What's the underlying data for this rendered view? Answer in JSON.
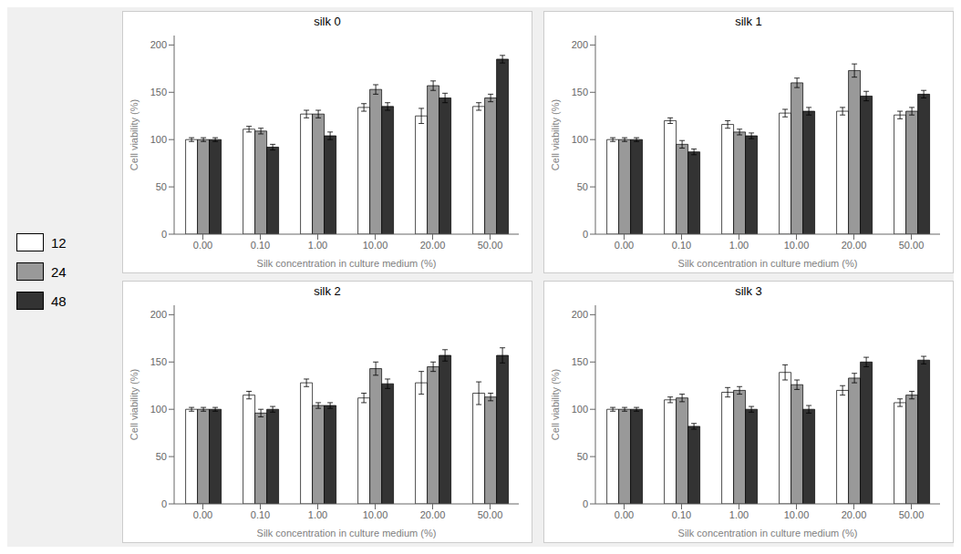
{
  "chart_data": [
    {
      "type": "bar",
      "title": "silk 0",
      "categories": [
        "0.00",
        "0.10",
        "1.00",
        "10.00",
        "20.00",
        "50.00"
      ],
      "xlabel": "Silk concentration in culture medium (%)",
      "ylabel": "Cell viability (%)",
      "ylim": [
        0,
        210
      ],
      "yticks": [
        0,
        50,
        100,
        150,
        200
      ],
      "legend": "left",
      "series": [
        {
          "name": "12",
          "color": "white",
          "values": [
            100,
            111,
            127,
            134,
            125,
            135
          ],
          "errors": [
            2,
            3,
            4,
            4,
            8,
            4
          ]
        },
        {
          "name": "24",
          "color": "#999999",
          "values": [
            100,
            109,
            127,
            153,
            157,
            144
          ],
          "errors": [
            2,
            3,
            4,
            5,
            5,
            4
          ]
        },
        {
          "name": "48",
          "color": "#333333",
          "values": [
            100,
            92,
            104,
            135,
            144,
            185
          ],
          "errors": [
            2,
            3,
            4,
            4,
            5,
            4
          ]
        }
      ]
    },
    {
      "type": "bar",
      "title": "silk 1",
      "categories": [
        "0.00",
        "0.10",
        "1.00",
        "10.00",
        "20.00",
        "50.00"
      ],
      "xlabel": "Silk concentration in culture medium (%)",
      "ylabel": "Cell viability (%)",
      "ylim": [
        0,
        210
      ],
      "yticks": [
        0,
        50,
        100,
        150,
        200
      ],
      "series": [
        {
          "name": "12",
          "color": "white",
          "values": [
            100,
            120,
            116,
            128,
            130,
            126
          ],
          "errors": [
            2,
            3,
            4,
            4,
            4,
            4
          ]
        },
        {
          "name": "24",
          "color": "#999999",
          "values": [
            100,
            95,
            108,
            160,
            173,
            130
          ],
          "errors": [
            2,
            4,
            3,
            5,
            7,
            4
          ]
        },
        {
          "name": "48",
          "color": "#333333",
          "values": [
            100,
            87,
            104,
            130,
            146,
            148
          ],
          "errors": [
            2,
            3,
            3,
            4,
            5,
            4
          ]
        }
      ]
    },
    {
      "type": "bar",
      "title": "silk 2",
      "categories": [
        "0.00",
        "0.10",
        "1.00",
        "10.00",
        "20.00",
        "50.00"
      ],
      "xlabel": "Silk concentration in culture medium (%)",
      "ylabel": "Cell viability (%)",
      "ylim": [
        0,
        210
      ],
      "yticks": [
        0,
        50,
        100,
        150,
        200
      ],
      "series": [
        {
          "name": "12",
          "color": "white",
          "values": [
            100,
            115,
            128,
            112,
            128,
            117
          ],
          "errors": [
            2,
            4,
            4,
            5,
            12,
            12
          ]
        },
        {
          "name": "24",
          "color": "#999999",
          "values": [
            100,
            96,
            104,
            143,
            145,
            113
          ],
          "errors": [
            2,
            4,
            3,
            7,
            5,
            4
          ]
        },
        {
          "name": "48",
          "color": "#333333",
          "values": [
            100,
            100,
            104,
            127,
            157,
            157
          ],
          "errors": [
            2,
            3,
            3,
            5,
            6,
            8
          ]
        }
      ]
    },
    {
      "type": "bar",
      "title": "silk 3",
      "categories": [
        "0.00",
        "0.10",
        "1.00",
        "10.00",
        "20.00",
        "50.00"
      ],
      "xlabel": "Silk concentration in culture medium (%)",
      "ylabel": "Cell viability (%)",
      "ylim": [
        0,
        210
      ],
      "yticks": [
        0,
        50,
        100,
        150,
        200
      ],
      "series": [
        {
          "name": "12",
          "color": "white",
          "values": [
            100,
            110,
            118,
            139,
            120,
            107
          ],
          "errors": [
            2,
            3,
            5,
            8,
            5,
            4
          ]
        },
        {
          "name": "24",
          "color": "#999999",
          "values": [
            100,
            112,
            120,
            126,
            133,
            115
          ],
          "errors": [
            2,
            4,
            4,
            5,
            5,
            4
          ]
        },
        {
          "name": "48",
          "color": "#333333",
          "values": [
            100,
            82,
            100,
            100,
            150,
            152
          ],
          "errors": [
            2,
            3,
            3,
            4,
            5,
            4
          ]
        }
      ]
    }
  ]
}
